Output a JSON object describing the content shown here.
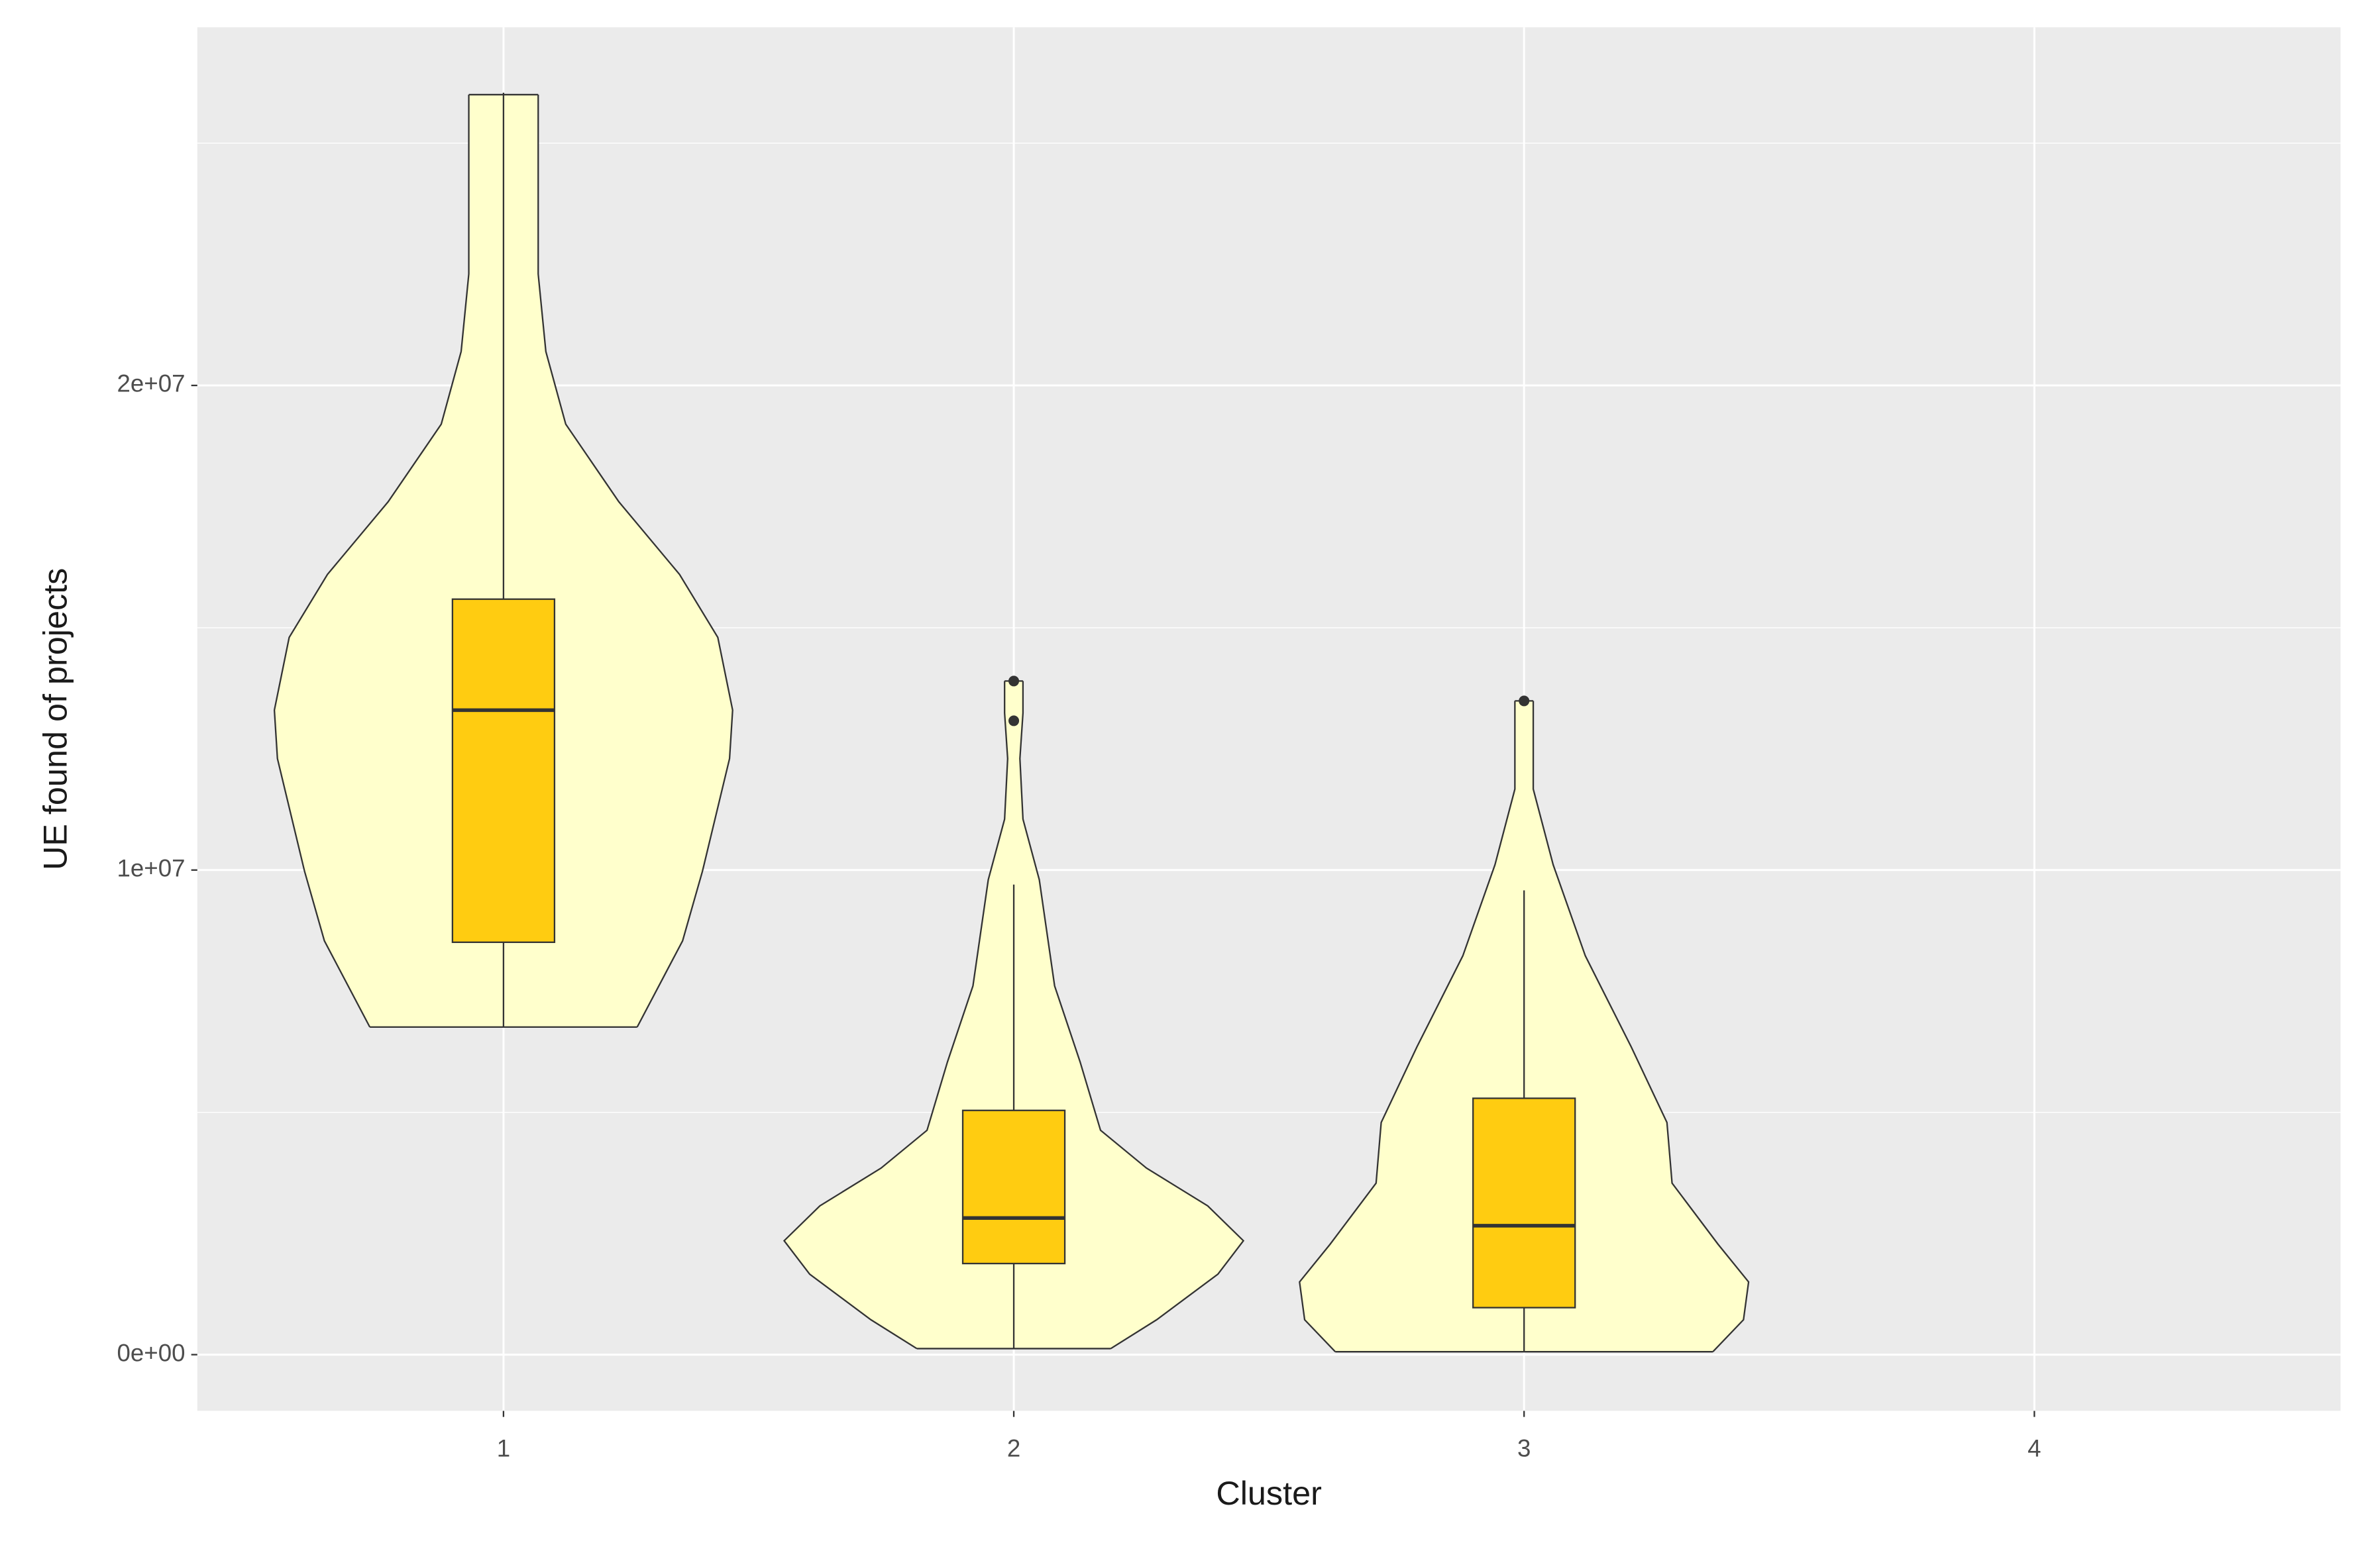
{
  "chart_data": {
    "type": "violin",
    "xlabel": "Cluster",
    "ylabel": "UE found of projects",
    "categories": [
      "1",
      "2",
      "3",
      "4"
    ],
    "ylim": [
      -1160000,
      27390000
    ],
    "yticks": [
      {
        "value": 0,
        "label": "0e+00"
      },
      {
        "value": 10000000,
        "label": "1e+07"
      },
      {
        "value": 20000000,
        "label": "2e+07"
      }
    ],
    "y_minor_grid": [
      5000000,
      15000000,
      25000000
    ],
    "grid": true,
    "violin_color": "#ffffcc",
    "box_color": "#ffcc11",
    "violins": [
      {
        "min": 6760000,
        "q1": 8510000,
        "median": 13300000,
        "q3": 15590000,
        "max": 26040000,
        "outliers": [],
        "density_y": [
          6760000,
          8540000,
          9980000,
          12300000,
          13300000,
          14800000,
          16100000,
          17600000,
          19200000,
          20700000,
          22300000,
          26000000
        ],
        "density_width": [
          0.262,
          0.351,
          0.39,
          0.443,
          0.449,
          0.42,
          0.345,
          0.226,
          0.122,
          0.083,
          0.068,
          0.068
        ]
      },
      {
        "min": 125000,
        "q1": 1880000,
        "median": 2820000,
        "q3": 5040000,
        "max": 9700000,
        "outliers": [
          13080000,
          13900000
        ],
        "density_y": [
          125000,
          720000,
          1660000,
          2350000,
          3070000,
          3850000,
          4630000,
          6040000,
          7610000,
          9800000,
          11050000,
          12300000,
          13240000,
          13900000
        ],
        "density_width": [
          0.19,
          0.28,
          0.4,
          0.45,
          0.38,
          0.26,
          0.17,
          0.13,
          0.08,
          0.05,
          0.018,
          0.012,
          0.018,
          0.018
        ]
      },
      {
        "min": 60000,
        "q1": 970000,
        "median": 2660000,
        "q3": 5290000,
        "max": 9580000,
        "outliers": [
          13490000
        ],
        "density_y": [
          60000,
          720000,
          1500000,
          2280000,
          3540000,
          4790000,
          6350000,
          8230000,
          10110000,
          11670000,
          13490000
        ],
        "density_width": [
          0.37,
          0.43,
          0.44,
          0.38,
          0.29,
          0.28,
          0.21,
          0.12,
          0.057,
          0.018,
          0.018
        ]
      },
      null
    ]
  }
}
